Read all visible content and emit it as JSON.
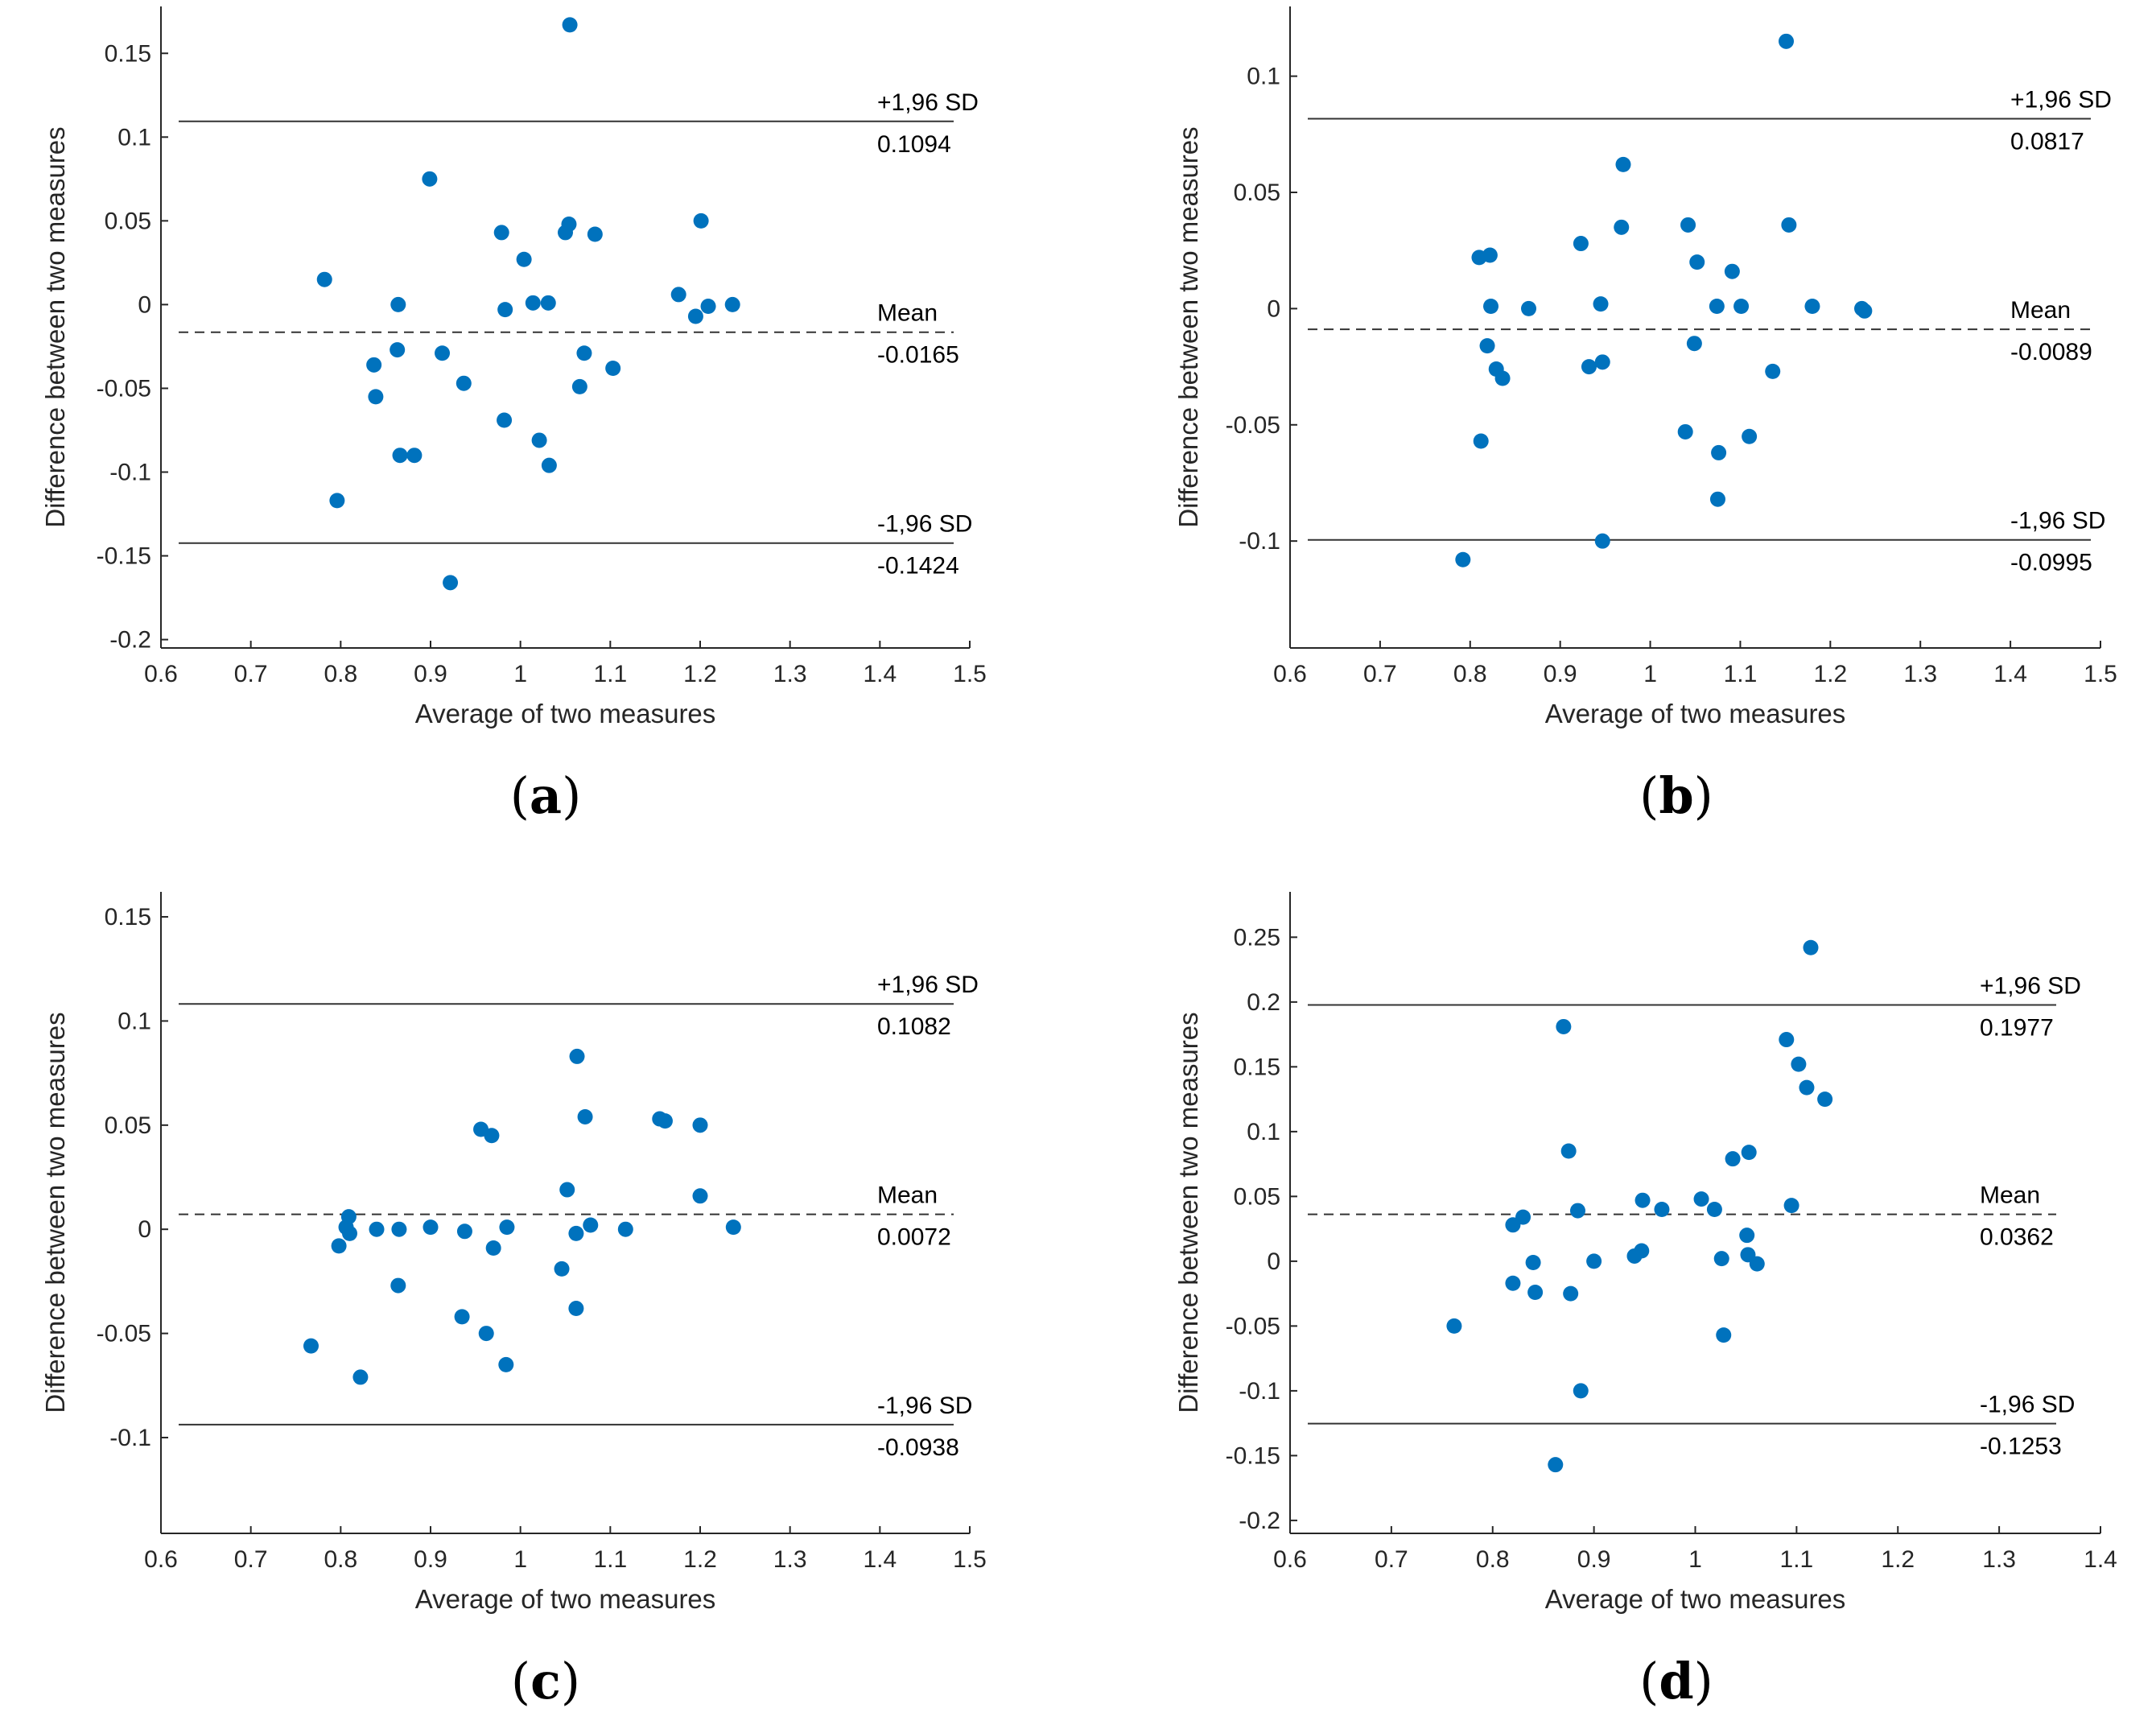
{
  "figure": {
    "marker_color": "#0072BD",
    "axis_color": "#262626",
    "line_color": "#333333"
  },
  "chart_data": [
    {
      "type": "scatter",
      "panel": "a",
      "xlabel": "Average of two measures",
      "ylabel": "Difference between two measures",
      "xlim": [
        0.6,
        1.5
      ],
      "ylim": [
        -0.205,
        0.178
      ],
      "xticks": [
        "0.6",
        "0.7",
        "0.8",
        "0.9",
        "1",
        "1.1",
        "1.2",
        "1.3",
        "1.4",
        "1.5"
      ],
      "yticks": [
        "-0.2",
        "-0.15",
        "-0.1",
        "-0.05",
        "0",
        "0.05",
        "0.1",
        "0.15"
      ],
      "ref_lines": {
        "upper": {
          "label": "+1,96 SD",
          "value_label": "0.1094",
          "y": 0.1094,
          "style": "solid"
        },
        "mean": {
          "label": "Mean",
          "value_label": "-0.0165",
          "y": -0.0165,
          "style": "dashed"
        },
        "lower": {
          "label": "-1,96 SD",
          "value_label": "-0.1424",
          "y": -0.1424,
          "style": "solid"
        }
      },
      "x": [
        0.782,
        0.796,
        0.837,
        0.839,
        0.863,
        0.864,
        0.866,
        0.882,
        0.899,
        0.913,
        0.922,
        0.937,
        0.979,
        0.982,
        0.983,
        1.004,
        1.014,
        1.021,
        1.031,
        1.032,
        1.05,
        1.054,
        1.055,
        1.066,
        1.071,
        1.083,
        1.103,
        1.176,
        1.195,
        1.201,
        1.209,
        1.236
      ],
      "y": [
        0.015,
        -0.117,
        -0.036,
        -0.055,
        -0.027,
        0.0,
        -0.09,
        -0.09,
        0.075,
        -0.029,
        -0.166,
        -0.047,
        0.043,
        -0.069,
        -0.003,
        0.027,
        0.001,
        -0.081,
        0.001,
        -0.096,
        0.043,
        0.048,
        0.167,
        -0.049,
        -0.029,
        0.042,
        -0.038,
        0.006,
        -0.007,
        0.05,
        -0.001,
        0.0
      ]
    },
    {
      "type": "scatter",
      "panel": "b",
      "xlabel": "Average of two measures",
      "ylabel": "Difference between two measures",
      "xlim": [
        0.6,
        1.5
      ],
      "ylim": [
        -0.146,
        0.13
      ],
      "xticks": [
        "0.6",
        "0.7",
        "0.8",
        "0.9",
        "1",
        "1.1",
        "1.2",
        "1.3",
        "1.4",
        "1.5"
      ],
      "yticks": [
        "-0.1",
        "-0.05",
        "0",
        "0.05",
        "0.1"
      ],
      "ref_lines": {
        "upper": {
          "label": "+1,96 SD",
          "value_label": "0.0817",
          "y": 0.0817,
          "style": "solid"
        },
        "mean": {
          "label": "Mean",
          "value_label": "-0.0089",
          "y": -0.0089,
          "style": "dashed"
        },
        "lower": {
          "label": "-1,96 SD",
          "value_label": "-0.0995",
          "y": -0.0995,
          "style": "solid"
        }
      },
      "x": [
        0.792,
        0.81,
        0.812,
        0.819,
        0.822,
        0.823,
        0.829,
        0.836,
        0.865,
        0.923,
        0.932,
        0.945,
        0.947,
        0.947,
        0.968,
        0.97,
        1.039,
        1.042,
        1.049,
        1.052,
        1.074,
        1.075,
        1.076,
        1.091,
        1.101,
        1.11,
        1.136,
        1.151,
        1.154,
        1.18,
        1.235,
        1.238
      ],
      "y": [
        -0.108,
        0.022,
        -0.057,
        -0.016,
        0.023,
        0.001,
        -0.026,
        -0.03,
        0.0,
        0.028,
        -0.025,
        0.002,
        -0.023,
        -0.1,
        0.035,
        0.062,
        -0.053,
        0.036,
        -0.015,
        0.02,
        0.001,
        -0.082,
        -0.062,
        0.016,
        0.001,
        -0.055,
        -0.027,
        0.115,
        0.036,
        0.001,
        0.0,
        -0.001
      ]
    },
    {
      "type": "scatter",
      "panel": "c",
      "xlabel": "Average of two measures",
      "ylabel": "Difference between two measures",
      "xlim": [
        0.6,
        1.5
      ],
      "ylim": [
        -0.146,
        0.162
      ],
      "xticks": [
        "0.6",
        "0.7",
        "0.8",
        "0.9",
        "1",
        "1.1",
        "1.2",
        "1.3",
        "1.4",
        "1.5"
      ],
      "yticks": [
        "-0.1",
        "-0.05",
        "0",
        "0.05",
        "0.1",
        "0.15"
      ],
      "ref_lines": {
        "upper": {
          "label": "+1,96 SD",
          "value_label": "0.1082",
          "y": 0.1082,
          "style": "solid"
        },
        "mean": {
          "label": "Mean",
          "value_label": "0.0072",
          "y": 0.0072,
          "style": "dashed"
        },
        "lower": {
          "label": "-1,96 SD",
          "value_label": "-0.0938",
          "y": -0.0938,
          "style": "solid"
        }
      },
      "x": [
        0.767,
        0.798,
        0.806,
        0.809,
        0.81,
        0.822,
        0.84,
        0.864,
        0.865,
        0.9,
        0.935,
        0.938,
        0.956,
        0.962,
        0.968,
        0.97,
        0.984,
        0.985,
        1.046,
        1.052,
        1.062,
        1.062,
        1.063,
        1.072,
        1.078,
        1.117,
        1.155,
        1.161,
        1.2,
        1.2,
        1.237
      ],
      "y": [
        -0.056,
        -0.008,
        0.001,
        0.006,
        -0.002,
        -0.071,
        0.0,
        -0.027,
        0.0,
        0.001,
        -0.042,
        -0.001,
        0.048,
        -0.05,
        0.045,
        -0.009,
        -0.065,
        0.001,
        -0.019,
        0.019,
        -0.038,
        -0.002,
        0.083,
        0.054,
        0.002,
        0.0,
        0.053,
        0.052,
        0.016,
        0.05,
        0.001
      ]
    },
    {
      "type": "scatter",
      "panel": "d",
      "xlabel": "Average of two measures",
      "ylabel": "Difference between two measures",
      "xlim": [
        0.6,
        1.4
      ],
      "ylim": [
        -0.21,
        0.285
      ],
      "xticks": [
        "0.6",
        "0.7",
        "0.8",
        "0.9",
        "1",
        "1.1",
        "1.2",
        "1.3",
        "1.4"
      ],
      "yticks": [
        "-0.2",
        "-0.15",
        "-0.1",
        "-0.05",
        "0",
        "0.05",
        "0.1",
        "0.15",
        "0.2",
        "0.25"
      ],
      "ref_lines": {
        "upper": {
          "label": "+1,96 SD",
          "value_label": "0.1977",
          "y": 0.1977,
          "style": "solid"
        },
        "mean": {
          "label": "Mean",
          "value_label": "0.0362",
          "y": 0.0362,
          "style": "dashed"
        },
        "lower": {
          "label": "-1,96 SD",
          "value_label": "-0.1253",
          "y": -0.1253,
          "style": "solid"
        }
      },
      "x": [
        0.762,
        0.82,
        0.82,
        0.83,
        0.84,
        0.842,
        0.862,
        0.87,
        0.875,
        0.877,
        0.884,
        0.887,
        0.9,
        0.94,
        0.947,
        0.948,
        0.967,
        1.006,
        1.019,
        1.026,
        1.028,
        1.037,
        1.051,
        1.052,
        1.053,
        1.061,
        1.09,
        1.095,
        1.102,
        1.11,
        1.114,
        1.128
      ],
      "y": [
        -0.05,
        0.028,
        -0.017,
        0.034,
        -0.001,
        -0.024,
        -0.157,
        0.181,
        0.085,
        -0.025,
        0.039,
        -0.1,
        0.0,
        0.004,
        0.008,
        0.047,
        0.04,
        0.048,
        0.04,
        0.002,
        -0.057,
        0.079,
        0.02,
        0.005,
        0.084,
        -0.002,
        0.171,
        0.043,
        0.152,
        0.134,
        0.242,
        0.125
      ]
    }
  ],
  "panel_labels": [
    "a",
    "b",
    "c",
    "d"
  ]
}
